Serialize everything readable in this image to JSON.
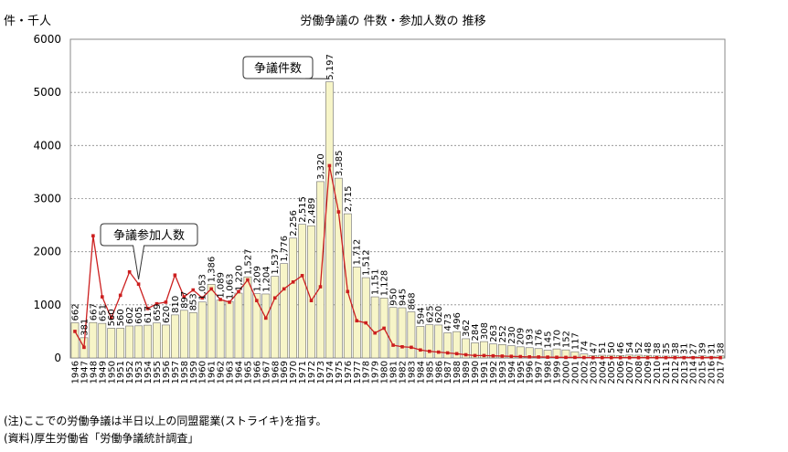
{
  "chart_data": {
    "type": "bar",
    "title": "労働争議の 件数・参加人数の 推移",
    "ylabel": "件・千人",
    "ylim": [
      0,
      6000
    ],
    "yticks": [
      0,
      1000,
      2000,
      3000,
      4000,
      5000,
      6000
    ],
    "grid": true,
    "categories": [
      "1946",
      "1947",
      "1948",
      "1949",
      "1950",
      "1951",
      "1952",
      "1953",
      "1954",
      "1955",
      "1956",
      "1957",
      "1958",
      "1959",
      "1960",
      "1961",
      "1962",
      "1963",
      "1964",
      "1965",
      "1966",
      "1967",
      "1968",
      "1969",
      "1970",
      "1971",
      "1972",
      "1973",
      "1974",
      "1975",
      "1976",
      "1977",
      "1978",
      "1979",
      "1980",
      "1981",
      "1982",
      "1983",
      "1984",
      "1985",
      "1986",
      "1987",
      "1988",
      "1989",
      "1990",
      "1991",
      "1992",
      "1993",
      "1994",
      "1995",
      "1996",
      "1997",
      "1998",
      "1999",
      "2000",
      "2001",
      "2002",
      "2003",
      "2004",
      "2005",
      "2006",
      "2007",
      "2008",
      "2009",
      "2010",
      "2011",
      "2012",
      "2013",
      "2014",
      "2015",
      "2016",
      "2017"
    ],
    "series": [
      {
        "kind": "bar",
        "color": "#f7f5c8",
        "values": [
          662,
          381,
          667,
          651,
          560,
          560,
          602,
          605,
          617,
          659,
          620,
          810,
          897,
          853,
          1053,
          1386,
          1089,
          1063,
          1220,
          1527,
          1209,
          1204,
          1537,
          1776,
          2256,
          2515,
          2489,
          3320,
          5197,
          3385,
          2715,
          1712,
          1512,
          1151,
          1128,
          950,
          945,
          868,
          594,
          625,
          620,
          473,
          496,
          362,
          284,
          308,
          263,
          252,
          230,
          209,
          193,
          176,
          145,
          170,
          152,
          117,
          74,
          47,
          51,
          50,
          46,
          54,
          52,
          48,
          38,
          35,
          38,
          31,
          27,
          39,
          31,
          38
        ],
        "labels": [
          "662",
          "381",
          "667",
          "651",
          "560",
          "560",
          "602",
          "605",
          "617",
          "659",
          "620",
          "810",
          "897",
          "853",
          "1,053",
          "1,386",
          "1,089",
          "1,063",
          "1,220",
          "1,527",
          "1,209",
          "1,204",
          "1,537",
          "1,776",
          "2,256",
          "2,515",
          "2,489",
          "3,320",
          "5,197",
          "3,385",
          "2,715",
          "1,712",
          "1,512",
          "1,151",
          "1,128",
          "950",
          "945",
          "868",
          "594",
          "625",
          "620",
          "473",
          "496",
          "362",
          "284",
          "308",
          "263",
          "252",
          "230",
          "209",
          "193",
          "176",
          "145",
          "170",
          "152",
          "117",
          "74",
          "47",
          "51",
          "50",
          "46",
          "54",
          "52",
          "48",
          "38",
          "35",
          "38",
          "31",
          "27",
          "39",
          "31",
          "38"
        ]
      },
      {
        "kind": "line",
        "color": "#cc1f1f",
        "values": [
          500,
          200,
          2300,
          1150,
          750,
          1180,
          1620,
          1390,
          930,
          1020,
          1050,
          1560,
          1150,
          1280,
          1130,
          1300,
          1100,
          1050,
          1250,
          1470,
          1080,
          750,
          1130,
          1300,
          1430,
          1550,
          1080,
          1340,
          3620,
          2750,
          1250,
          700,
          660,
          470,
          560,
          240,
          210,
          200,
          150,
          125,
          110,
          95,
          80,
          60,
          45,
          45,
          40,
          35,
          30,
          25,
          20,
          18,
          15,
          12,
          10,
          10,
          8,
          5,
          5,
          5,
          5,
          5,
          5,
          5,
          5,
          5,
          5,
          5,
          5,
          5,
          5,
          5
        ]
      }
    ],
    "annotations": [
      {
        "text": "争議件数",
        "target": "1974"
      },
      {
        "text": "争議参加人数",
        "target": "1953"
      }
    ]
  },
  "notes": {
    "note": "(注)ここでの労働争議は半日以上の同盟罷業(ストライキ)を指す。",
    "source": "(資料)厚生労働省「労働争議統計調査」"
  }
}
